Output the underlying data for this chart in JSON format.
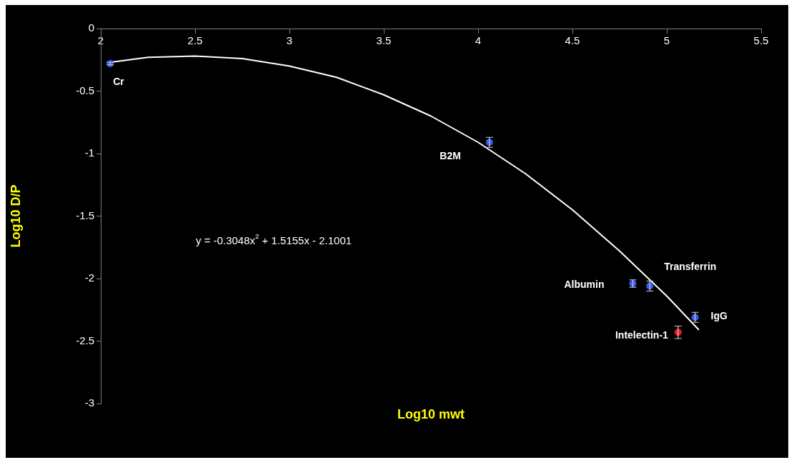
{
  "chart_data": {
    "type": "scatter",
    "xlabel": "Log10 mwt",
    "ylabel": "Log10 D/P",
    "xlim": [
      2,
      5.5
    ],
    "xticks": [
      2,
      2.5,
      3,
      3.5,
      4,
      4.5,
      5,
      5.5
    ],
    "ylim": [
      -3,
      0
    ],
    "yticks": [
      -3,
      -2.5,
      -2,
      -1.5,
      -1,
      -0.5,
      0
    ],
    "grid": false,
    "legend": false,
    "marker": "circle",
    "annotations": [
      "y = -0.3048x$^{2}$ + 1.5155x - 2.1001"
    ],
    "series": [
      {
        "name": "Cr",
        "color": "#3a5cf0",
        "x": [
          2.05
        ],
        "values": [
          -0.28
        ],
        "errors": [
          0.01
        ]
      },
      {
        "name": "B2M",
        "color": "#3a5cf0",
        "x": [
          4.06
        ],
        "values": [
          -0.91
        ],
        "errors": [
          0.04
        ]
      },
      {
        "name": "Albumin",
        "color": "#3a5cf0",
        "x": [
          4.82
        ],
        "values": [
          -2.04
        ],
        "errors": [
          0.03
        ]
      },
      {
        "name": "Transferrin",
        "color": "#3a5cf0",
        "x": [
          4.91
        ],
        "values": [
          -2.06
        ],
        "errors": [
          0.04
        ]
      },
      {
        "name": "IgG",
        "color": "#3a5cf0",
        "x": [
          5.15
        ],
        "values": [
          -2.31
        ],
        "errors": [
          0.04
        ]
      },
      {
        "name": "Intelectin-1",
        "color": "#ee1c1c",
        "x": [
          5.06
        ],
        "values": [
          -2.43
        ],
        "errors": [
          0.05
        ]
      },
      {
        "type": "line",
        "color": "#ffffff",
        "marker": "none",
        "x": [
          2.05,
          2.25,
          2.5,
          2.75,
          3,
          3.25,
          3.5,
          3.75,
          4,
          4.25,
          4.5,
          4.75,
          5,
          5.17
        ],
        "values": [
          -0.27,
          -0.23,
          -0.22,
          -0.24,
          -0.3,
          -0.39,
          -0.53,
          -0.7,
          -0.91,
          -1.16,
          -1.45,
          -1.78,
          -2.14,
          -2.41
        ]
      }
    ]
  }
}
